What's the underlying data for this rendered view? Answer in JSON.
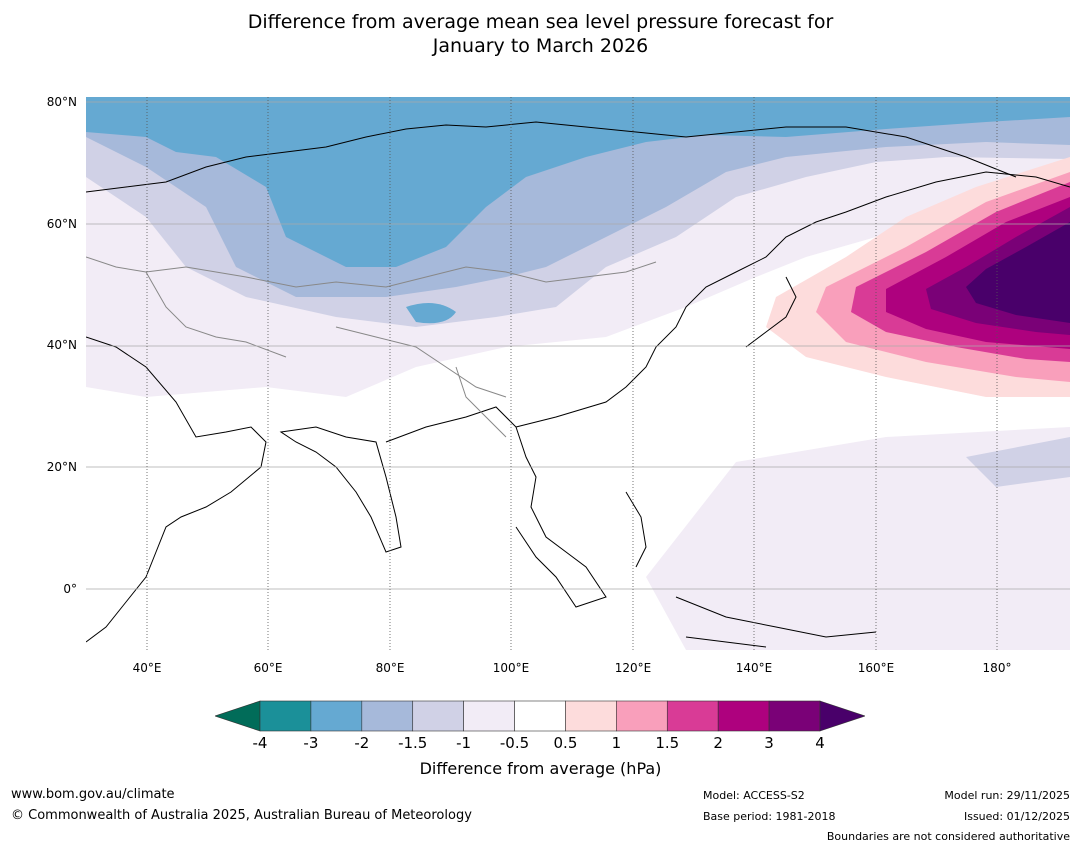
{
  "title": {
    "line1": "Difference from average mean sea level pressure forecast for",
    "line2": "January to March 2026"
  },
  "map": {
    "lat_labels": [
      "80°N",
      "60°N",
      "40°N",
      "20°N",
      "0°"
    ],
    "lon_labels": [
      "40°E",
      "60°E",
      "80°E",
      "100°E",
      "120°E",
      "140°E",
      "160°E",
      "180°"
    ],
    "region": "Asia and northwest Pacific",
    "strongest_anomaly": "positive pressure anomaly > 4 hPa over the North Pacific near 180°, 50°N",
    "negative_anomaly": "-3 to -2 hPa over northern Russia and Arctic"
  },
  "colorbar": {
    "ticks": [
      "-4",
      "-3",
      "-2",
      "-1.5",
      "-1",
      "-0.5",
      "0.5",
      "1",
      "1.5",
      "2",
      "3",
      "4"
    ],
    "colors": [
      "#1b9099",
      "#65a9d2",
      "#a6b9da",
      "#d0d1e6",
      "#f2ecf6",
      "#ffffff",
      "#fddcdc",
      "#f99fbb",
      "#d93b96",
      "#ae017e",
      "#7a0177"
    ],
    "under_color": "#016c59",
    "over_color": "#49006a",
    "label": "Difference from average (hPa)"
  },
  "footer": {
    "website": "www.bom.gov.au/climate",
    "copyright": "© Commonwealth of Australia 2025, Australian Bureau of Meteorology",
    "model": "Model: ACCESS-S2",
    "base_period": "Base period: 1981-2018",
    "model_run": "Model run: 29/11/2025",
    "issued": "Issued: 01/12/2025",
    "disclaimer": "Boundaries are not considered authoritative"
  }
}
